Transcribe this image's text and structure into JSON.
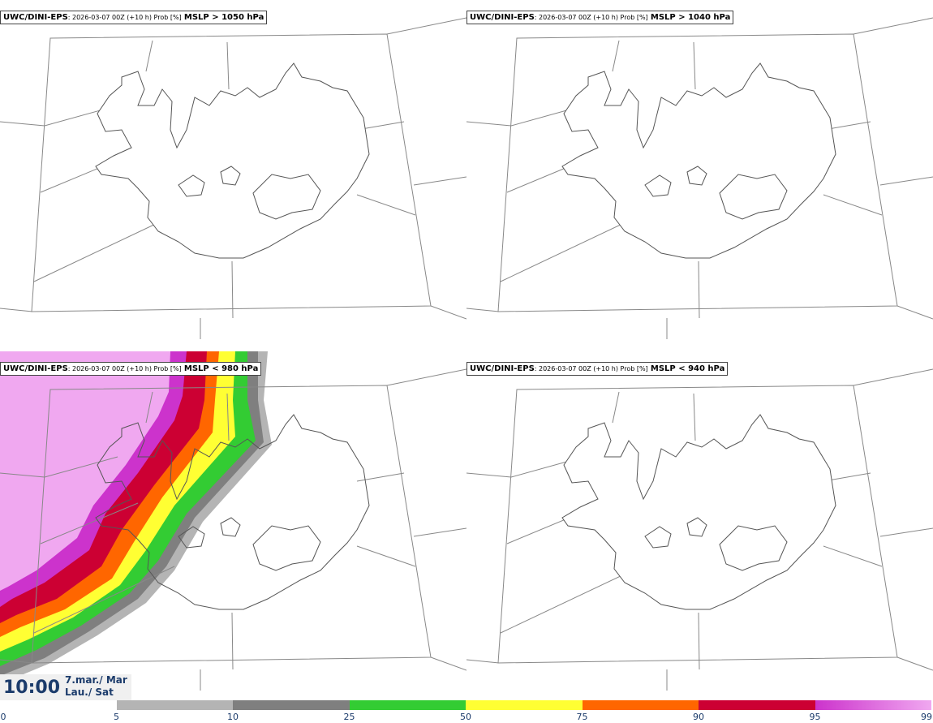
{
  "panels": [
    {
      "source": "UWC/DINI-EPS",
      "meta": ": 2026-03-07 00Z (+10 h) Prob [%]",
      "threshold": "MSLP > 1050 hPa"
    },
    {
      "source": "UWC/DINI-EPS",
      "meta": ": 2026-03-07 00Z (+10 h) Prob [%]",
      "threshold": "MSLP > 1040 hPa"
    },
    {
      "source": "UWC/DINI-EPS",
      "meta": ": 2026-03-07 00Z (+10 h) Prob [%]",
      "threshold": "MSLP < 980 hPa"
    },
    {
      "source": "UWC/DINI-EPS",
      "meta": ": 2026-03-07 00Z (+10 h) Prob [%]",
      "threshold": "MSLP < 940 hPa"
    }
  ],
  "footer": {
    "time": "10:00",
    "date_line1": "7.mar./ Mar",
    "date_line2": "Lau./ Sat"
  },
  "colorbar": {
    "ticks": [
      "0",
      "5",
      "10",
      "25",
      "50",
      "75",
      "90",
      "95",
      "99"
    ],
    "colors": [
      "#ffffff",
      "#b4b4b4",
      "#7f7f7f",
      "#33cc33",
      "#ffff33",
      "#ff6600",
      "#cc0033",
      "#cc33cc",
      "#f0a8f0"
    ]
  }
}
